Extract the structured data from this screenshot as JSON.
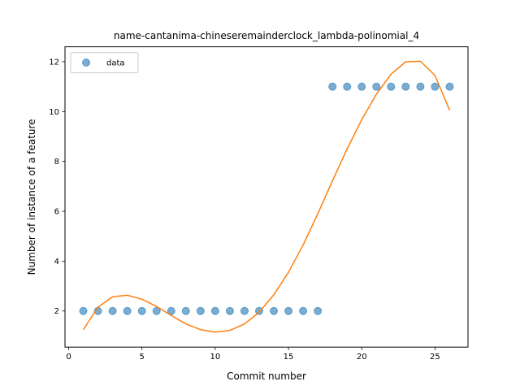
{
  "chart_data": {
    "type": "scatter",
    "title": "name-cantanima-chineseremainderclock_lambda-polinomial_4",
    "xlabel": "Commit number",
    "ylabel": "Number of instance of a feature",
    "xlim": [
      -0.25,
      27.25
    ],
    "ylim": [
      0.55,
      12.6
    ],
    "xticks": [
      0,
      5,
      10,
      15,
      20,
      25
    ],
    "yticks": [
      2,
      4,
      6,
      8,
      10,
      12
    ],
    "grid": false,
    "legend_position": "top-left",
    "series": [
      {
        "name": "data",
        "kind": "scatter",
        "color": "#1f77b4",
        "x": [
          1,
          2,
          3,
          4,
          5,
          6,
          7,
          8,
          9,
          10,
          11,
          12,
          13,
          14,
          15,
          16,
          17,
          18,
          19,
          20,
          21,
          22,
          23,
          24,
          25,
          26
        ],
        "y": [
          2,
          2,
          2,
          2,
          2,
          2,
          2,
          2,
          2,
          2,
          2,
          2,
          2,
          2,
          2,
          2,
          2,
          11,
          11,
          11,
          11,
          11,
          11,
          11,
          11,
          11
        ]
      },
      {
        "kind": "line",
        "color": "#ff7f0e",
        "x": [
          1,
          2,
          3,
          4,
          5,
          6,
          7,
          8,
          9,
          10,
          11,
          12,
          13,
          14,
          15,
          16,
          17,
          18,
          19,
          20,
          21,
          22,
          23,
          24,
          25,
          26
        ],
        "y": [
          1.25,
          2.15,
          2.57,
          2.63,
          2.47,
          2.18,
          1.82,
          1.48,
          1.25,
          1.15,
          1.22,
          1.48,
          1.95,
          2.65,
          3.55,
          4.65,
          5.9,
          7.22,
          8.5,
          9.68,
          10.7,
          11.5,
          12.0,
          12.02,
          11.45,
          10.05
        ]
      }
    ]
  }
}
